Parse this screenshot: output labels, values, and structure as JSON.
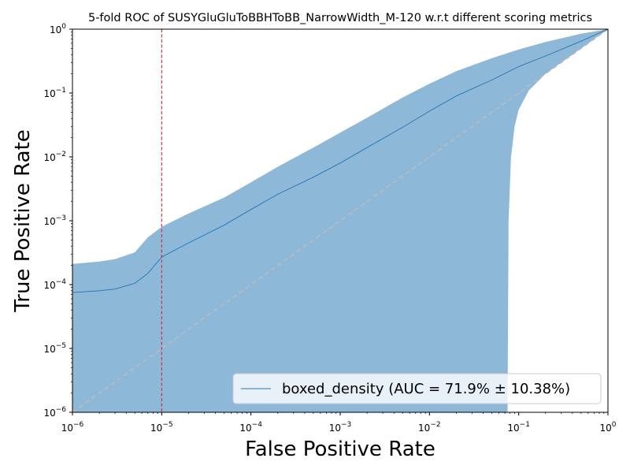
{
  "chart_data": {
    "type": "line",
    "title": "5-fold ROC of SUSYGluGluToBBHToBB_NarrowWidth_M-120 w.r.t different scoring metrics",
    "xlabel": "False Positive Rate",
    "ylabel": "True Positive Rate",
    "xscale": "log",
    "yscale": "log",
    "xlim": [
      1e-06,
      1
    ],
    "ylim": [
      1e-06,
      1
    ],
    "xticks": [
      {
        "base": "10",
        "exp": "−6"
      },
      {
        "base": "10",
        "exp": "−5"
      },
      {
        "base": "10",
        "exp": "−4"
      },
      {
        "base": "10",
        "exp": "−3"
      },
      {
        "base": "10",
        "exp": "−2"
      },
      {
        "base": "10",
        "exp": "−1"
      },
      {
        "base": "10",
        "exp": "0"
      }
    ],
    "yticks": [
      {
        "base": "10",
        "exp": "−6"
      },
      {
        "base": "10",
        "exp": "−5"
      },
      {
        "base": "10",
        "exp": "−4"
      },
      {
        "base": "10",
        "exp": "−3"
      },
      {
        "base": "10",
        "exp": "−2"
      },
      {
        "base": "10",
        "exp": "−1"
      },
      {
        "base": "10",
        "exp": "0"
      }
    ],
    "grid": false,
    "legend_position": "lower-right",
    "series": [
      {
        "name": "boxed_density (AUC = 71.9% ± 10.38%)",
        "color": "#1f77b4",
        "x": [
          1e-06,
          2e-06,
          3e-06,
          5e-06,
          7e-06,
          1e-05,
          2e-05,
          5e-05,
          0.0001,
          0.0002,
          0.0005,
          0.001,
          0.002,
          0.005,
          0.01,
          0.02,
          0.05,
          0.1,
          0.2,
          0.5,
          1.0
        ],
        "y": [
          7.5e-05,
          8e-05,
          8.5e-05,
          0.000105,
          0.00015,
          0.00027,
          0.00045,
          0.00085,
          0.0015,
          0.0026,
          0.0048,
          0.008,
          0.014,
          0.029,
          0.052,
          0.09,
          0.16,
          0.26,
          0.38,
          0.65,
          1.0
        ]
      }
    ],
    "band": {
      "color": "#8db8d8",
      "x": [
        1e-06,
        2e-06,
        3e-06,
        5e-06,
        7e-06,
        1e-05,
        2e-05,
        5e-05,
        0.0001,
        0.0002,
        0.0005,
        0.001,
        0.002,
        0.005,
        0.01,
        0.02,
        0.05,
        0.1,
        0.2,
        0.5,
        1.0
      ],
      "upper": [
        0.00021,
        0.00023,
        0.00025,
        0.00032,
        0.00055,
        0.0008,
        0.0013,
        0.0023,
        0.004,
        0.007,
        0.014,
        0.024,
        0.041,
        0.085,
        0.14,
        0.22,
        0.35,
        0.48,
        0.63,
        0.85,
        1.0
      ],
      "lower_cutoff_x": 0.075,
      "lower": [
        [
          0.075,
          1e-06
        ],
        [
          0.077,
          0.001
        ],
        [
          0.082,
          0.01
        ],
        [
          0.09,
          0.03
        ],
        [
          0.1,
          0.055
        ],
        [
          0.13,
          0.11
        ],
        [
          0.2,
          0.2
        ],
        [
          0.3,
          0.3
        ],
        [
          0.5,
          0.5
        ],
        [
          1.0,
          1.0
        ]
      ]
    },
    "reference_lines": [
      {
        "kind": "diagonal",
        "style": "dashed",
        "color": "#bbbbbb"
      },
      {
        "kind": "vertical",
        "x": 1e-05,
        "style": "dashed",
        "color": "#d62728"
      }
    ]
  }
}
